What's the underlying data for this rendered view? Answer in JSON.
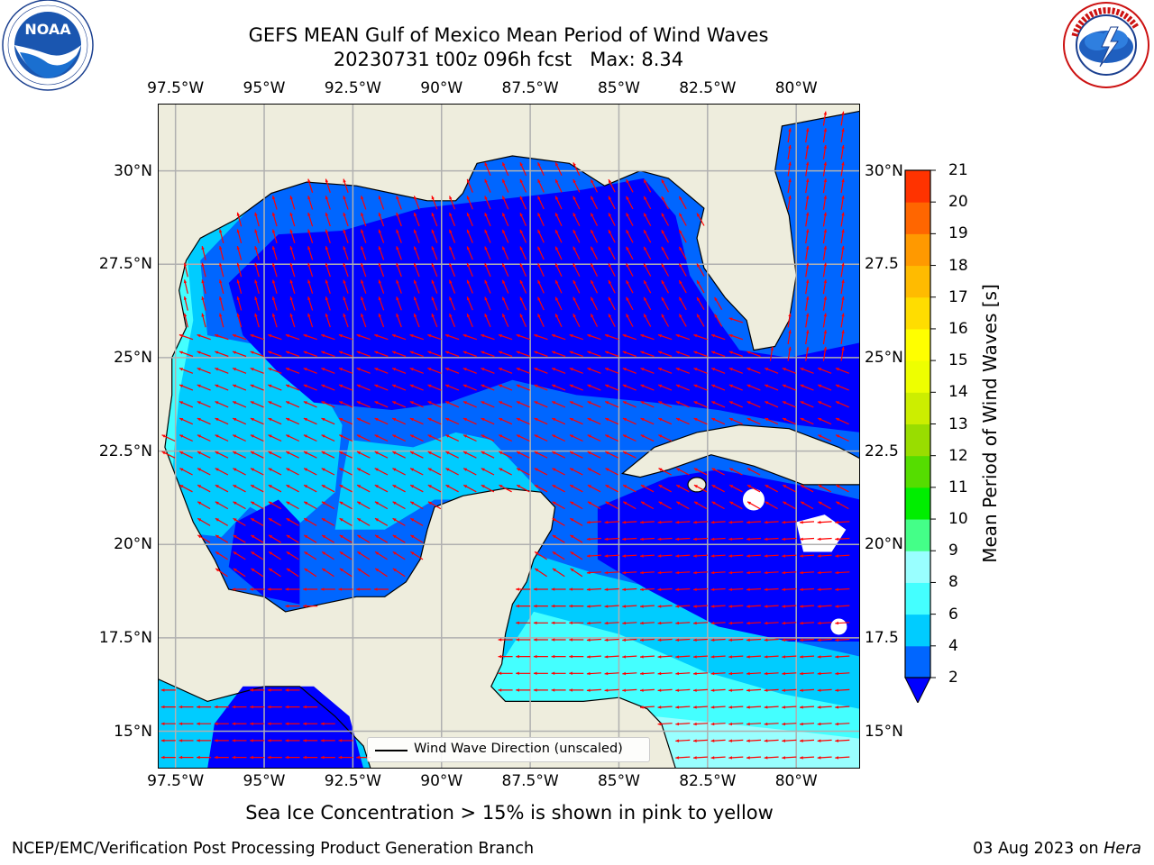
{
  "title": {
    "line1": "GEFS MEAN Gulf of Mexico Mean Period of Wind Waves",
    "line2": "20230731 t00z 096h fcst   Max: 8.34"
  },
  "logos": {
    "noaa": {
      "text": "NOAA",
      "ring_text": "NATIONAL OCEANIC AND ATMOSPHERIC ADMINISTRATION · U.S. DEPARTMENT OF COMMERCE"
    },
    "nws": {
      "ring_text": "NATIONAL WEATHER SERVICE"
    }
  },
  "map": {
    "lon_labels": [
      "97.5°W",
      "95°W",
      "92.5°W",
      "90°W",
      "87.5°W",
      "85°W",
      "82.5°W",
      "80°W"
    ],
    "lon_values": [
      -97.5,
      -95,
      -92.5,
      -90,
      -87.5,
      -85,
      -82.5,
      -80
    ],
    "lat_labels": [
      "30°N",
      "27.5°N",
      "25°N",
      "22.5°N",
      "20°N",
      "17.5°N",
      "15°N"
    ],
    "lat_labels_right": [
      "30°N",
      "27.5",
      "25°N",
      "22.5",
      "20°N",
      "17.5",
      "15°N"
    ],
    "lat_values": [
      30,
      27.5,
      25,
      22.5,
      20,
      17.5,
      15
    ],
    "extent": {
      "lon_min": -98,
      "lon_max": -78.2,
      "lat_min": 14,
      "lat_max": 31.8
    },
    "land_color": "#eeeddd",
    "arrow_color": "#ff0000",
    "grid_color": "#b0b0b0"
  },
  "legend": {
    "label": "Wind Wave Direction (unscaled)"
  },
  "colorbar": {
    "title": "Mean Period of Wind Waves [s]",
    "levels": [
      "2",
      "4",
      "6",
      "8",
      "9",
      "10",
      "11",
      "12",
      "13",
      "14",
      "15",
      "16",
      "17",
      "18",
      "19",
      "20",
      "21"
    ],
    "colors": [
      "#0066ff",
      "#00ccff",
      "#44ffff",
      "#99ffff",
      "#44ff88",
      "#00ee00",
      "#55dd00",
      "#99dd00",
      "#ccee00",
      "#eeff00",
      "#ffff00",
      "#ffdd00",
      "#ffbb00",
      "#ff9900",
      "#ff6600",
      "#ff3300",
      "#ff0000"
    ],
    "extend_color": "#0000ff"
  },
  "ice_note": "Sea Ice Concentration > 15% is shown in pink to yellow",
  "footer": {
    "left": "NCEP/EMC/Verification Post Processing Product Generation Branch",
    "right_date": "03 Aug 2023 on ",
    "right_host": "Hera"
  }
}
